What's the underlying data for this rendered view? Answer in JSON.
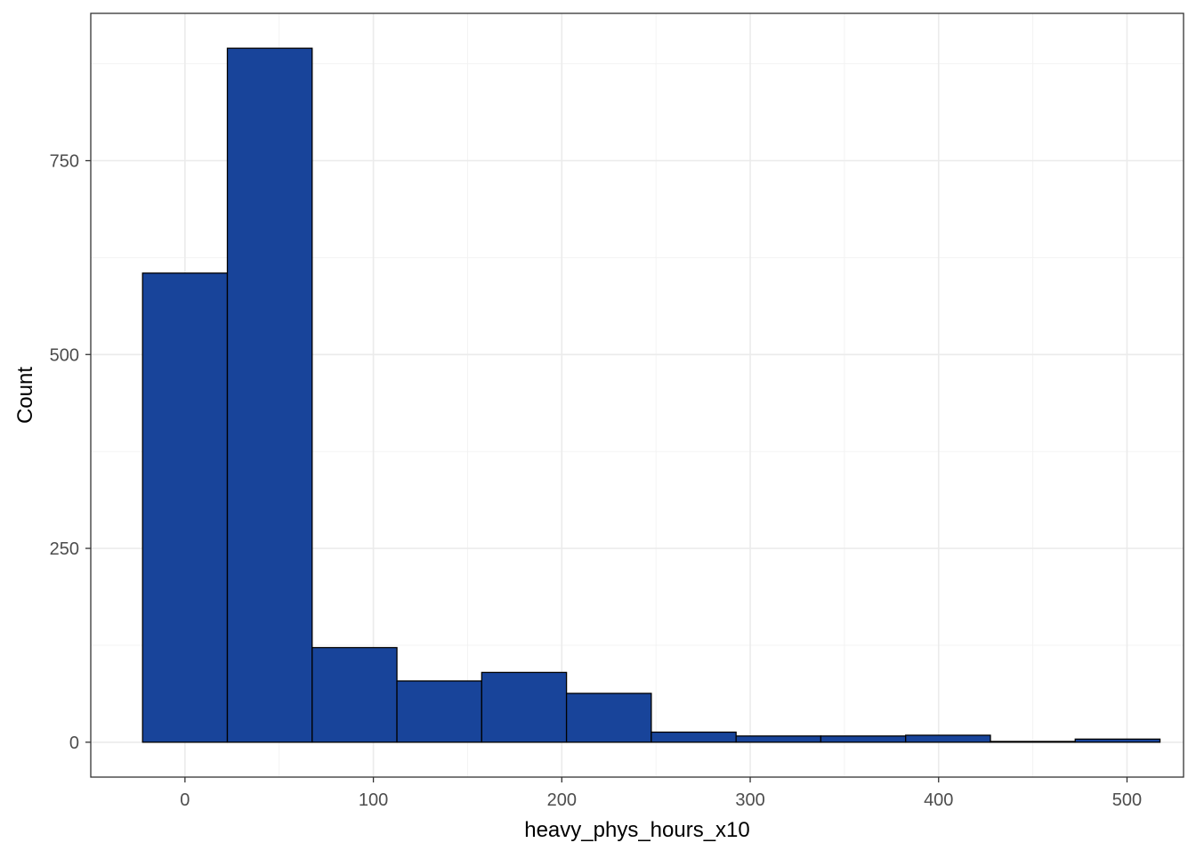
{
  "chart_data": {
    "type": "bar",
    "subtype": "histogram",
    "xlabel": "heavy_phys_hours_x10",
    "ylabel": "Count",
    "xlim": [
      -50,
      530
    ],
    "ylim": [
      -45,
      940
    ],
    "x_ticks": [
      0,
      100,
      200,
      300,
      400,
      500
    ],
    "x_minor_ticks": [
      50,
      150,
      250,
      350,
      450
    ],
    "y_ticks": [
      0,
      250,
      500,
      750
    ],
    "y_minor_ticks": [
      125,
      375,
      625,
      875
    ],
    "bin_width": 45,
    "bins": [
      {
        "x_start": -22.5,
        "x_end": 22.5,
        "count": 605
      },
      {
        "x_start": 22.5,
        "x_end": 67.5,
        "count": 895
      },
      {
        "x_start": 67.5,
        "x_end": 112.5,
        "count": 122
      },
      {
        "x_start": 112.5,
        "x_end": 157.5,
        "count": 79
      },
      {
        "x_start": 157.5,
        "x_end": 202.5,
        "count": 90
      },
      {
        "x_start": 202.5,
        "x_end": 247.5,
        "count": 63
      },
      {
        "x_start": 247.5,
        "x_end": 292.5,
        "count": 13
      },
      {
        "x_start": 292.5,
        "x_end": 337.5,
        "count": 8
      },
      {
        "x_start": 337.5,
        "x_end": 382.5,
        "count": 8
      },
      {
        "x_start": 382.5,
        "x_end": 427.5,
        "count": 9
      },
      {
        "x_start": 427.5,
        "x_end": 472.5,
        "count": 1
      },
      {
        "x_start": 472.5,
        "x_end": 517.5,
        "count": 4
      }
    ],
    "fill_color": "#18449A",
    "outline_color": "#000000",
    "grid": true,
    "legend": "none"
  }
}
